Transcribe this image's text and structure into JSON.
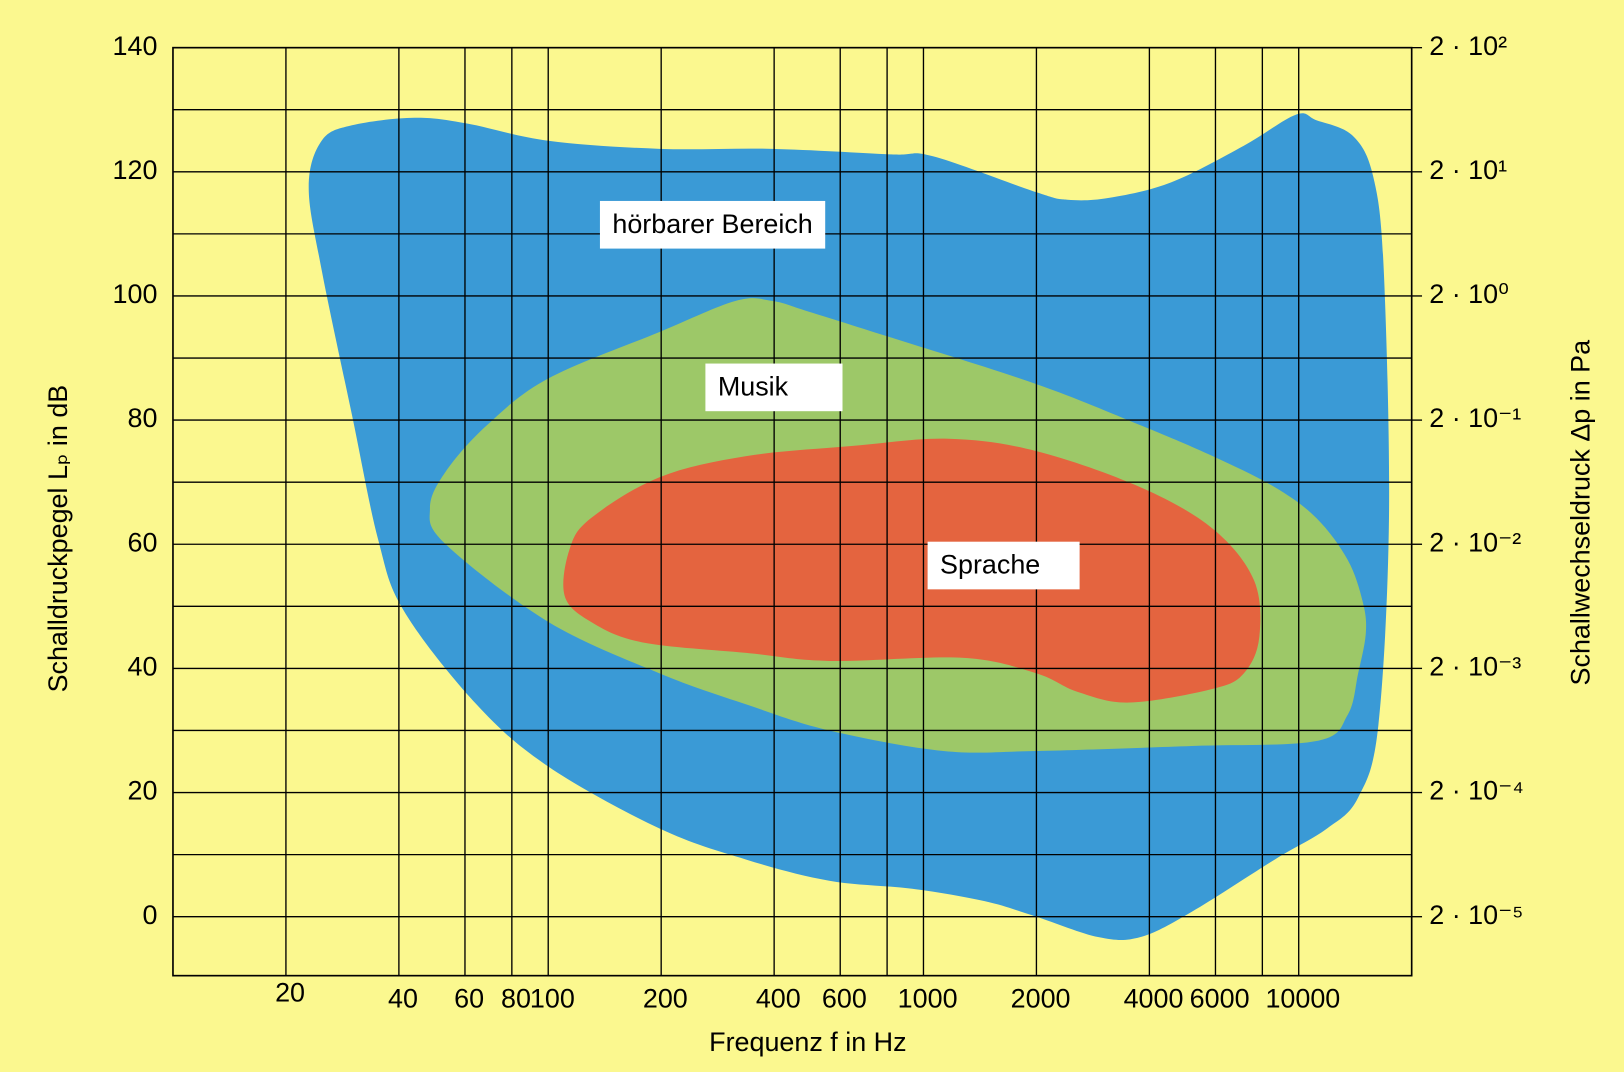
{
  "chart_data": {
    "type": "area",
    "xlabel": "Frequenz f in Hz",
    "ylabel": "Schalldruckpegel Lₚ in dB",
    "y2label": "Schallwechseldruck  Δp in Pa",
    "xlog": true,
    "y2log": true,
    "grid": true,
    "xlim": [
      10,
      20000
    ],
    "xticks": [
      20,
      40,
      60,
      80,
      100,
      200,
      400,
      600,
      1000,
      2000,
      4000,
      6000,
      10000
    ],
    "xminor_grid": [
      800,
      8000
    ],
    "ylim": [
      -9.5,
      140
    ],
    "yticks": [
      0,
      20,
      40,
      60,
      80,
      100,
      120,
      140
    ],
    "yminor_grid": [
      10,
      30,
      50,
      70,
      90,
      110,
      130
    ],
    "y2lim": [
      6.7e-06,
      200
    ],
    "y2ticks": [
      {
        "value": 200,
        "label": "2 · 10²"
      },
      {
        "value": 20,
        "label": "2 · 10¹"
      },
      {
        "value": 2,
        "label": "2 · 10⁰"
      },
      {
        "value": 0.2,
        "label": "2 · 10⁻¹"
      },
      {
        "value": 0.02,
        "label": "2 · 10⁻²"
      },
      {
        "value": 0.002,
        "label": "2 · 10⁻³"
      },
      {
        "value": 0.0002,
        "label": "2 · 10⁻⁴"
      },
      {
        "value": 2e-05,
        "label": "2 · 10⁻⁵"
      }
    ],
    "series": [
      {
        "name": "hörbarer Bereich",
        "color": "#3a9ad6",
        "x": [
          23,
          24.9,
          30,
          44,
          60.5,
          100,
          198,
          395,
          820,
          1060,
          2000,
          2420,
          3120,
          4570,
          7140,
          9820,
          11150,
          13930,
          15800,
          16850,
          17400,
          16300,
          14400,
          11900,
          8630,
          5190,
          3780,
          2930,
          2000,
          1455,
          933,
          561,
          337,
          198,
          100,
          64.4,
          41.3,
          35.2,
          30,
          24.9
        ],
        "values": [
          117.5,
          125,
          127.5,
          128.7,
          127.8,
          125,
          123.7,
          123.7,
          122.8,
          122.5,
          116.7,
          115.5,
          115.8,
          118.3,
          124.2,
          129.2,
          128.3,
          125.8,
          119.2,
          104.2,
          64.2,
          30.8,
          19.2,
          14.2,
          9.2,
          0.8,
          -3.3,
          -3.3,
          0,
          2.5,
          4.5,
          5.8,
          9.2,
          14.2,
          24.2,
          34.2,
          49.2,
          60.8,
          80.8,
          104.2
        ]
      },
      {
        "name": "Musik",
        "color": "#9dc868",
        "x": [
          48.4,
          53.3,
          68.7,
          100,
          198,
          316,
          395,
          493,
          820,
          2000,
          3780,
          5900,
          8630,
          11150,
          13500,
          14800,
          15100,
          14400,
          13500,
          11150,
          5190,
          2000,
          1130,
          561,
          337,
          198,
          100,
          53.3
        ],
        "values": [
          65.8,
          71.7,
          79.2,
          86.7,
          94.2,
          99.2,
          99.2,
          97.5,
          93.3,
          85.8,
          79.2,
          74.2,
          69.2,
          64.2,
          57.5,
          50.8,
          45.8,
          39.2,
          32.5,
          28.3,
          27.5,
          26.7,
          26.7,
          30,
          34.2,
          39.2,
          47.5,
          60
        ]
      },
      {
        "name": "Sprache",
        "color": "#e4643f",
        "x": [
          110.6,
          114,
          130,
          198,
          337,
          637,
          1165,
          2000,
          3780,
          5900,
          7600,
          7850,
          7140,
          5900,
          3550,
          2580,
          2000,
          1280,
          561,
          337,
          178,
          130
        ],
        "values": [
          51.7,
          59.2,
          64.2,
          70.8,
          74.2,
          75.8,
          77,
          75,
          69.2,
          62.5,
          54.2,
          45,
          39.2,
          36.7,
          34.5,
          36.2,
          39.2,
          41.7,
          41.2,
          42.5,
          44.2,
          47.5
        ]
      }
    ]
  }
}
